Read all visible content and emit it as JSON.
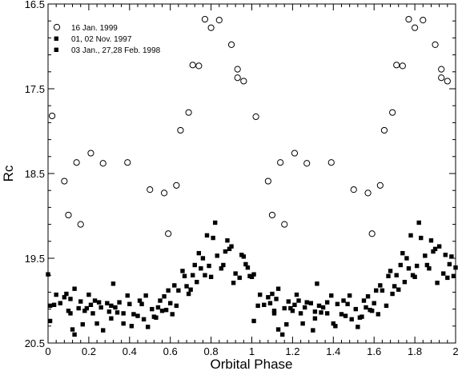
{
  "chart_data": {
    "type": "scatter",
    "xlabel": "Orbital Phase",
    "ylabel": "Rc",
    "xlim": [
      0,
      2
    ],
    "ylim": [
      16.5,
      20.5
    ],
    "y_inverted": true,
    "grid": false,
    "legend_position": "top-left",
    "x_ticks": [
      0,
      0.2,
      0.4,
      0.6,
      0.8,
      1,
      1.2,
      1.4,
      1.6,
      1.8,
      2
    ],
    "x_tick_labels": [
      "0",
      "0.2",
      "0.4",
      "0.6",
      "0.8",
      "1",
      "1.2",
      "1.4",
      "1.6",
      "1.8",
      "2"
    ],
    "y_ticks": [
      16.5,
      17.5,
      18.5,
      19.5,
      20.5
    ],
    "y_tick_labels": [
      "16.5",
      "17.5",
      "18.5",
      "19.5",
      "20.5"
    ],
    "series": [
      {
        "name": "16 Jan. 1999",
        "marker": "open-circle",
        "x": [
          0.02,
          0.08,
          0.1,
          0.14,
          0.16,
          0.21,
          0.27,
          0.39,
          0.5,
          0.57,
          0.59,
          0.63,
          0.65,
          0.69,
          0.71,
          0.74,
          0.77,
          0.8,
          0.84,
          0.9,
          0.93,
          0.93,
          0.96,
          1.02,
          1.08,
          1.1,
          1.14,
          1.16,
          1.21,
          1.27,
          1.39,
          1.5,
          1.57,
          1.59,
          1.63,
          1.65,
          1.69,
          1.71,
          1.74,
          1.77,
          1.8,
          1.84,
          1.9,
          1.93,
          1.93,
          1.96
        ],
        "y": [
          17.82,
          18.59,
          18.99,
          18.37,
          19.1,
          18.26,
          18.38,
          18.37,
          18.69,
          18.73,
          19.21,
          18.64,
          17.99,
          17.78,
          17.22,
          17.23,
          16.68,
          16.78,
          16.69,
          16.98,
          17.27,
          17.37,
          17.41,
          17.83,
          18.59,
          18.99,
          18.37,
          19.1,
          18.26,
          18.38,
          18.37,
          18.69,
          18.73,
          19.21,
          18.64,
          17.99,
          17.78,
          17.22,
          17.23,
          16.68,
          16.78,
          16.69,
          16.98,
          17.27,
          17.37,
          17.41
        ]
      },
      {
        "name": "01, 02 Nov. 1997",
        "marker": "filled-square",
        "x": [
          0.0,
          0.01,
          0.03,
          0.06,
          0.09,
          0.1,
          0.11,
          0.12,
          0.13,
          0.15,
          0.16,
          0.18,
          0.2,
          0.22,
          0.24,
          0.25,
          0.27,
          0.3,
          0.31,
          0.33,
          0.35,
          0.37,
          0.4,
          0.42,
          0.44,
          0.46,
          0.47,
          0.49,
          0.52,
          0.54,
          0.56,
          0.59,
          0.61,
          0.62,
          0.63,
          0.66,
          0.68,
          0.7,
          0.72,
          0.73,
          0.75,
          0.77,
          0.79,
          0.81,
          0.83,
          0.85,
          0.87,
          0.89,
          0.9,
          0.92,
          0.94,
          0.96,
          0.98,
          1.0,
          1.01,
          1.03,
          1.06,
          1.09,
          1.1,
          1.11,
          1.12,
          1.13,
          1.15,
          1.16,
          1.18,
          1.2,
          1.22,
          1.24,
          1.25,
          1.27,
          1.3,
          1.31,
          1.33,
          1.35,
          1.37,
          1.4,
          1.42,
          1.44,
          1.46,
          1.47,
          1.49,
          1.52,
          1.54,
          1.56,
          1.59,
          1.61,
          1.62,
          1.63,
          1.66,
          1.68,
          1.7,
          1.72,
          1.73,
          1.75,
          1.77,
          1.79,
          1.81,
          1.83,
          1.85,
          1.87,
          1.89,
          1.9,
          1.92,
          1.94,
          1.96,
          1.98,
          2.0
        ],
        "y": [
          19.69,
          20.06,
          20.05,
          20.03,
          19.92,
          20.12,
          19.98,
          20.34,
          20.4,
          20.09,
          20.01,
          20.12,
          19.93,
          20.15,
          20.27,
          20.02,
          20.35,
          20.13,
          20.06,
          20.08,
          20.02,
          20.27,
          20.04,
          20.16,
          20.18,
          20.04,
          20.22,
          20.31,
          20.19,
          20.08,
          20.12,
          19.88,
          20.16,
          19.82,
          20.06,
          19.65,
          19.83,
          19.87,
          19.58,
          19.78,
          19.62,
          19.7,
          19.59,
          19.26,
          19.47,
          19.62,
          19.42,
          19.39,
          19.36,
          19.68,
          19.73,
          19.48,
          19.61,
          19.72,
          19.69,
          20.06,
          20.05,
          20.03,
          19.92,
          20.12,
          19.98,
          20.34,
          20.4,
          20.09,
          20.01,
          20.12,
          19.93,
          20.15,
          20.27,
          20.02,
          20.35,
          20.13,
          20.06,
          20.08,
          20.02,
          20.27,
          20.04,
          20.16,
          20.18,
          20.04,
          20.22,
          20.31,
          20.19,
          20.08,
          20.12,
          19.88,
          20.16,
          19.82,
          20.06,
          19.65,
          19.83,
          19.87,
          19.58,
          19.78,
          19.62,
          19.7,
          19.59,
          19.26,
          19.47,
          19.62,
          19.42,
          19.39,
          19.36,
          19.68,
          19.73,
          19.48,
          19.61
        ]
      },
      {
        "name": "03 Jan., 27,28 Feb. 1998",
        "marker": "filled-square",
        "x": [
          0.01,
          0.04,
          0.08,
          0.11,
          0.13,
          0.17,
          0.19,
          0.21,
          0.23,
          0.26,
          0.29,
          0.31,
          0.32,
          0.34,
          0.37,
          0.39,
          0.41,
          0.45,
          0.48,
          0.51,
          0.53,
          0.55,
          0.57,
          0.58,
          0.6,
          0.64,
          0.67,
          0.69,
          0.71,
          0.74,
          0.76,
          0.78,
          0.8,
          0.82,
          0.86,
          0.88,
          0.91,
          0.95,
          0.97,
          0.99,
          1.01,
          1.04,
          1.08,
          1.11,
          1.13,
          1.17,
          1.19,
          1.21,
          1.23,
          1.26,
          1.29,
          1.31,
          1.32,
          1.34,
          1.37,
          1.39,
          1.41,
          1.45,
          1.48,
          1.51,
          1.53,
          1.55,
          1.57,
          1.58,
          1.6,
          1.64,
          1.67,
          1.69,
          1.71,
          1.74,
          1.76,
          1.78,
          1.8,
          1.82,
          1.86,
          1.88,
          1.91,
          1.95,
          1.97,
          1.99
        ],
        "y": [
          20.24,
          19.93,
          19.96,
          20.15,
          19.86,
          20.28,
          20.09,
          20.05,
          20.0,
          20.08,
          20.03,
          20.21,
          19.8,
          20.14,
          20.15,
          19.94,
          20.3,
          20.0,
          19.94,
          20.1,
          20.2,
          20.0,
          19.95,
          20.11,
          20.03,
          19.88,
          19.71,
          19.92,
          19.7,
          19.44,
          19.5,
          19.23,
          19.72,
          19.08,
          19.58,
          19.29,
          19.79,
          19.46,
          19.57,
          19.71,
          20.24,
          19.93,
          19.96,
          20.15,
          19.86,
          20.28,
          20.09,
          20.05,
          20.0,
          20.08,
          20.03,
          20.21,
          19.8,
          20.14,
          20.15,
          19.94,
          20.3,
          20.0,
          19.94,
          20.1,
          20.2,
          20.0,
          19.95,
          20.11,
          20.03,
          19.88,
          19.71,
          19.92,
          19.7,
          19.44,
          19.5,
          19.23,
          19.72,
          19.08,
          19.58,
          19.29,
          19.79,
          19.46,
          19.57,
          19.71
        ]
      }
    ]
  }
}
